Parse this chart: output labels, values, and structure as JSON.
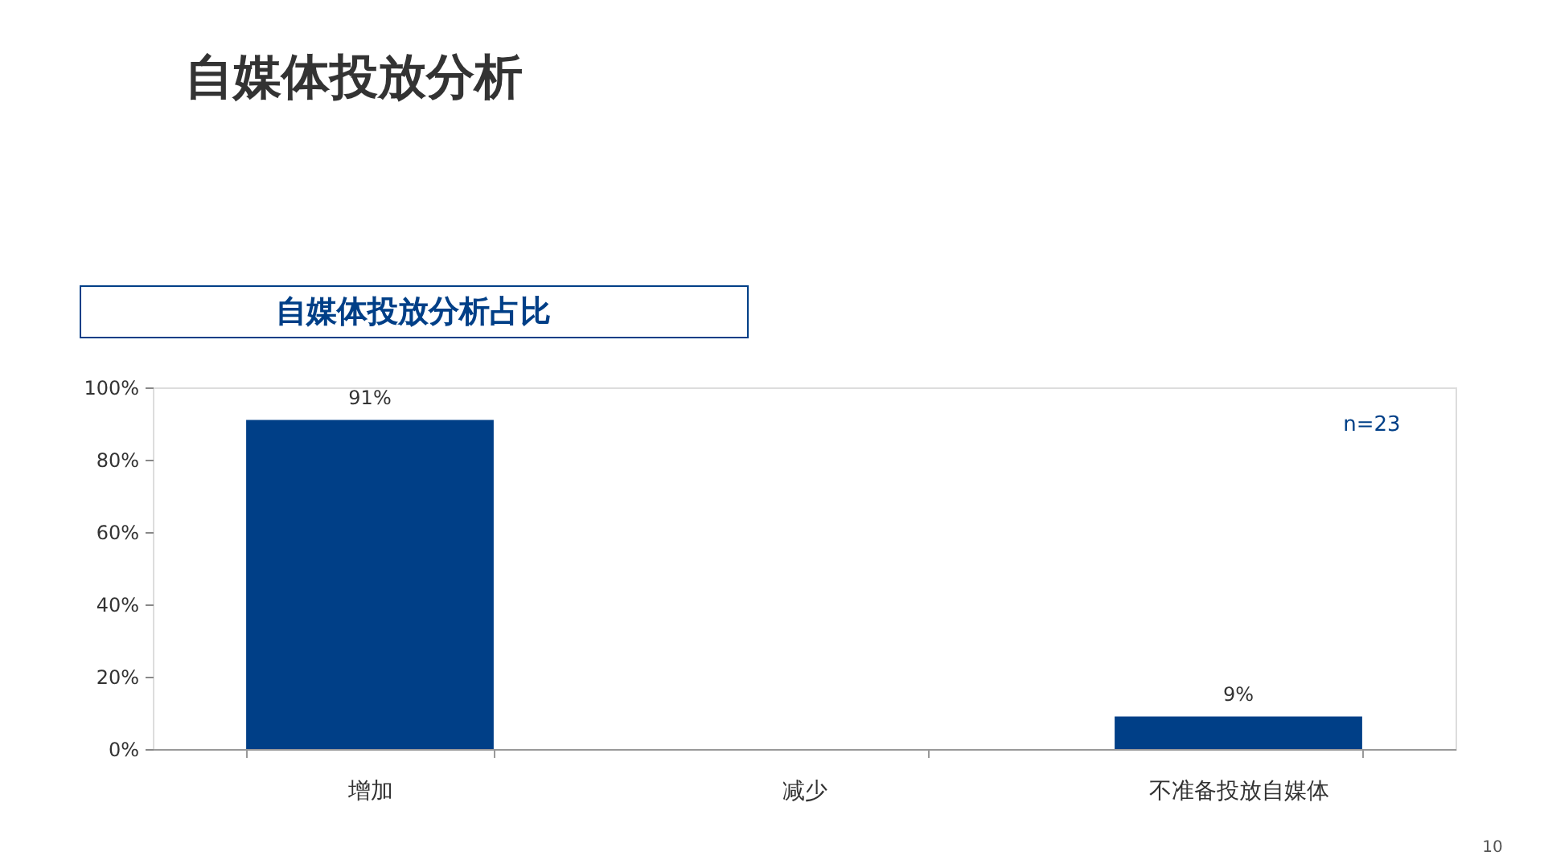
{
  "chart_data": {
    "type": "bar",
    "title": "自媒体投放分析",
    "subtitle": "自媒体投放分析占比",
    "categories": [
      "增加",
      "减少",
      "不准备投放自媒体"
    ],
    "values": [
      91,
      0,
      9
    ],
    "color": "#003f87",
    "value_labels": [
      "91%",
      null,
      "9%"
    ],
    "ylim": [
      0,
      100
    ],
    "yticks": [
      {
        "value": 0,
        "label": "0%"
      },
      {
        "value": 20,
        "label": "20%"
      },
      {
        "value": 40,
        "label": "40%"
      },
      {
        "value": 60,
        "label": "60%"
      },
      {
        "value": 80,
        "label": "80%"
      },
      {
        "value": 100,
        "label": "100%"
      }
    ],
    "grid": false,
    "annotations": [
      "n=23",
      "10"
    ]
  }
}
